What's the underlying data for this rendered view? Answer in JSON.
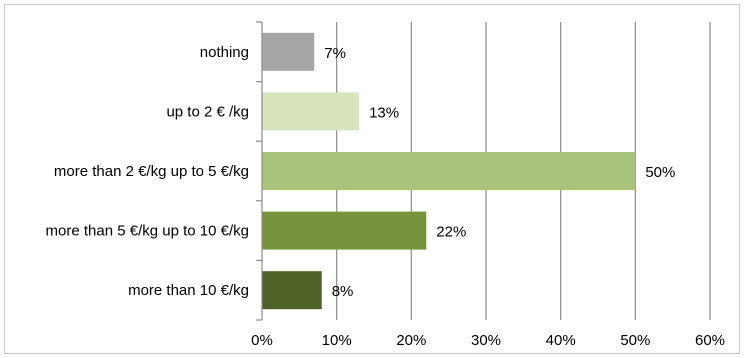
{
  "chart_data": {
    "type": "bar",
    "orientation": "horizontal",
    "categories": [
      "nothing",
      "up to 2 € /kg",
      "more than 2 €/kg up to 5 €/kg",
      "more than 5 €/kg up to 10 €/kg",
      "more than 10 €/kg"
    ],
    "values": [
      7,
      13,
      50,
      22,
      8
    ],
    "value_labels": [
      "7%",
      "13%",
      "50%",
      "22%",
      "8%"
    ],
    "bar_colors": [
      "#a6a6a6",
      "#d8e4bc",
      "#a9c47a",
      "#77933c",
      "#4f6228"
    ],
    "xlim": [
      0,
      60
    ],
    "x_ticks": [
      0,
      10,
      20,
      30,
      40,
      50,
      60
    ],
    "x_tick_labels": [
      "0%",
      "10%",
      "20%",
      "30%",
      "40%",
      "50%",
      "60%"
    ],
    "grid": "vertical",
    "legend": "none",
    "title": "",
    "xlabel": "",
    "ylabel": ""
  }
}
